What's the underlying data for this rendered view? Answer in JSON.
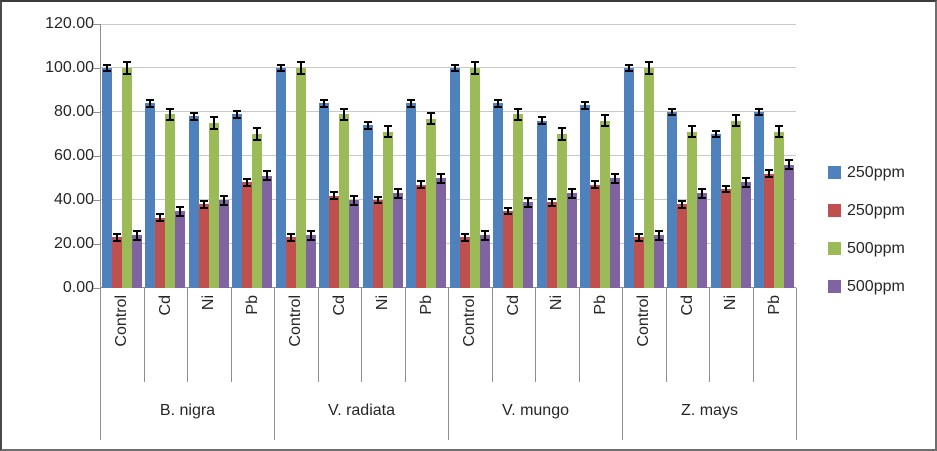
{
  "figure": {
    "background": "#ffffff",
    "border_color": "#6e6e6e"
  },
  "chart_data": {
    "type": "bar",
    "title": "",
    "orientation": "vertical",
    "grid": true,
    "legend_position": "right",
    "error_bars": true,
    "groups": [
      "B. nigra",
      "V. radiata",
      "V. mungo",
      "Z. mays"
    ],
    "treatments": [
      "Control",
      "Cd",
      "Ni",
      "Pb"
    ],
    "y_axis": {
      "min": 0,
      "max": 120,
      "step": 20,
      "tick_labels": [
        "0.00",
        "20.00",
        "40.00",
        "60.00",
        "80.00",
        "100.00",
        "120.00"
      ]
    },
    "series": [
      {
        "name": "250ppm",
        "color": "#4F81BD",
        "error": 2,
        "values": [
          [
            100,
            84,
            78,
            79
          ],
          [
            100,
            84,
            74,
            84
          ],
          [
            100,
            84,
            76,
            83
          ],
          [
            100,
            80,
            70,
            80
          ]
        ]
      },
      {
        "name": "250ppm",
        "color": "#C0504D",
        "error": 2,
        "values": [
          [
            23,
            32,
            38,
            48
          ],
          [
            23,
            42,
            40,
            47
          ],
          [
            23,
            35,
            39,
            47
          ],
          [
            23,
            38,
            45,
            52
          ]
        ]
      },
      {
        "name": "500ppm",
        "color": "#9BBB59",
        "error": 3,
        "values": [
          [
            100,
            79,
            75,
            70
          ],
          [
            100,
            79,
            71,
            77
          ],
          [
            100,
            79,
            70,
            76
          ],
          [
            100,
            71,
            76,
            71
          ]
        ]
      },
      {
        "name": "500ppm",
        "color": "#8064A2",
        "error": 2.5,
        "values": [
          [
            24,
            35,
            40,
            51
          ],
          [
            24,
            40,
            43,
            50
          ],
          [
            24,
            39,
            43,
            50
          ],
          [
            24,
            43,
            48,
            56
          ]
        ]
      }
    ]
  }
}
